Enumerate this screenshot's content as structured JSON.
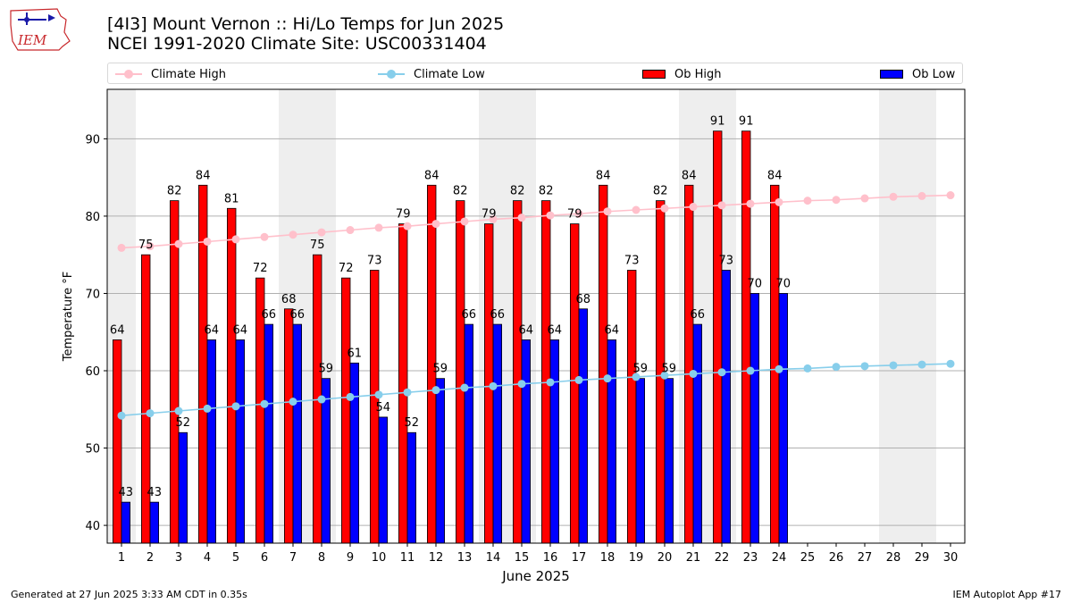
{
  "header": {
    "logo_text": "IEM",
    "title_line1": "[4I3] Mount Vernon :: Hi/Lo Temps for Jun 2025",
    "title_line2": "NCEI 1991-2020 Climate Site: USC00331404"
  },
  "legend": {
    "climate_high": "Climate High",
    "climate_low": "Climate Low",
    "ob_high": "Ob High",
    "ob_low": "Ob Low"
  },
  "footer": {
    "generated": "Generated at 27 Jun 2025 3:33 AM CDT in 0.35s",
    "app": "IEM Autoplot App #17"
  },
  "colors": {
    "ob_high": "#ff0000",
    "ob_low": "#0000ff",
    "climate_high": "#ffc0cb",
    "climate_low": "#87ceeb",
    "weekend_shade": "#eeeeee",
    "grid": "#b0b0b0"
  },
  "chart_data": {
    "type": "bar",
    "xlabel": "June 2025",
    "ylabel": "Temperature °F",
    "ylim": [
      37.7,
      96.4
    ],
    "yticks": [
      40,
      50,
      60,
      70,
      80,
      90
    ],
    "grid": "horizontal",
    "legend_position": "top",
    "categories": [
      1,
      2,
      3,
      4,
      5,
      6,
      7,
      8,
      9,
      10,
      11,
      12,
      13,
      14,
      15,
      16,
      17,
      18,
      19,
      20,
      21,
      22,
      23,
      24,
      25,
      26,
      27,
      28,
      29,
      30
    ],
    "weekend_shaded_days": [
      [
        1,
        1
      ],
      [
        7,
        8
      ],
      [
        14,
        15
      ],
      [
        21,
        22
      ],
      [
        28,
        29
      ]
    ],
    "series": [
      {
        "name": "Ob High",
        "type": "bar",
        "values": [
          64,
          75,
          82,
          84,
          81,
          72,
          68,
          75,
          72,
          73,
          79,
          84,
          82,
          79,
          82,
          82,
          79,
          84,
          73,
          82,
          84,
          91,
          91,
          84,
          null,
          null,
          null,
          null,
          null,
          null
        ]
      },
      {
        "name": "Ob Low",
        "type": "bar",
        "values": [
          43,
          43,
          52,
          64,
          64,
          66,
          66,
          59,
          61,
          54,
          52,
          59,
          66,
          66,
          64,
          64,
          68,
          64,
          59,
          59,
          66,
          73,
          70,
          70,
          null,
          null,
          null,
          null,
          null,
          null
        ]
      },
      {
        "name": "Climate High",
        "type": "line",
        "values": [
          75.9,
          76.1,
          76.4,
          76.7,
          77.0,
          77.3,
          77.6,
          77.9,
          78.2,
          78.5,
          78.7,
          79.0,
          79.3,
          79.6,
          79.8,
          80.1,
          80.3,
          80.6,
          80.8,
          81.0,
          81.2,
          81.4,
          81.6,
          81.8,
          82.0,
          82.1,
          82.3,
          82.5,
          82.6,
          82.7
        ]
      },
      {
        "name": "Climate Low",
        "type": "line",
        "values": [
          54.2,
          54.5,
          54.8,
          55.1,
          55.4,
          55.7,
          56.0,
          56.3,
          56.6,
          56.9,
          57.2,
          57.5,
          57.8,
          58.0,
          58.3,
          58.5,
          58.8,
          59.0,
          59.2,
          59.4,
          59.6,
          59.8,
          60.0,
          60.2,
          60.3,
          60.5,
          60.6,
          60.7,
          60.8,
          60.9
        ]
      }
    ]
  }
}
